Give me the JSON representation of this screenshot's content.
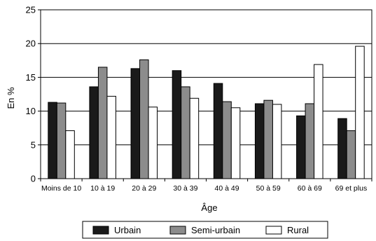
{
  "chart_data": {
    "type": "bar",
    "title": "",
    "xlabel": "Âge",
    "ylabel": "En %",
    "ylim": [
      0,
      25
    ],
    "yticks": [
      0,
      5,
      10,
      15,
      20,
      25
    ],
    "grid": true,
    "legend": "bottom",
    "categories": [
      "Moins de 10",
      "10 à 19",
      "20 à 29",
      "30 à 39",
      "40 à 49",
      "50 à 59",
      "60 à 69",
      "69 et plus"
    ],
    "series": [
      {
        "name": "Urbain",
        "color": "#1a1a1a",
        "values": [
          11.3,
          13.6,
          16.3,
          16.0,
          14.1,
          11.1,
          9.3,
          8.9
        ]
      },
      {
        "name": "Semi-urbain",
        "color": "#8c8c8c",
        "values": [
          11.2,
          16.5,
          17.6,
          13.6,
          11.4,
          11.6,
          11.1,
          7.1
        ]
      },
      {
        "name": "Rural",
        "color": "#ffffff",
        "values": [
          7.1,
          12.2,
          10.6,
          11.9,
          10.5,
          11.0,
          16.9,
          19.6
        ]
      }
    ]
  }
}
